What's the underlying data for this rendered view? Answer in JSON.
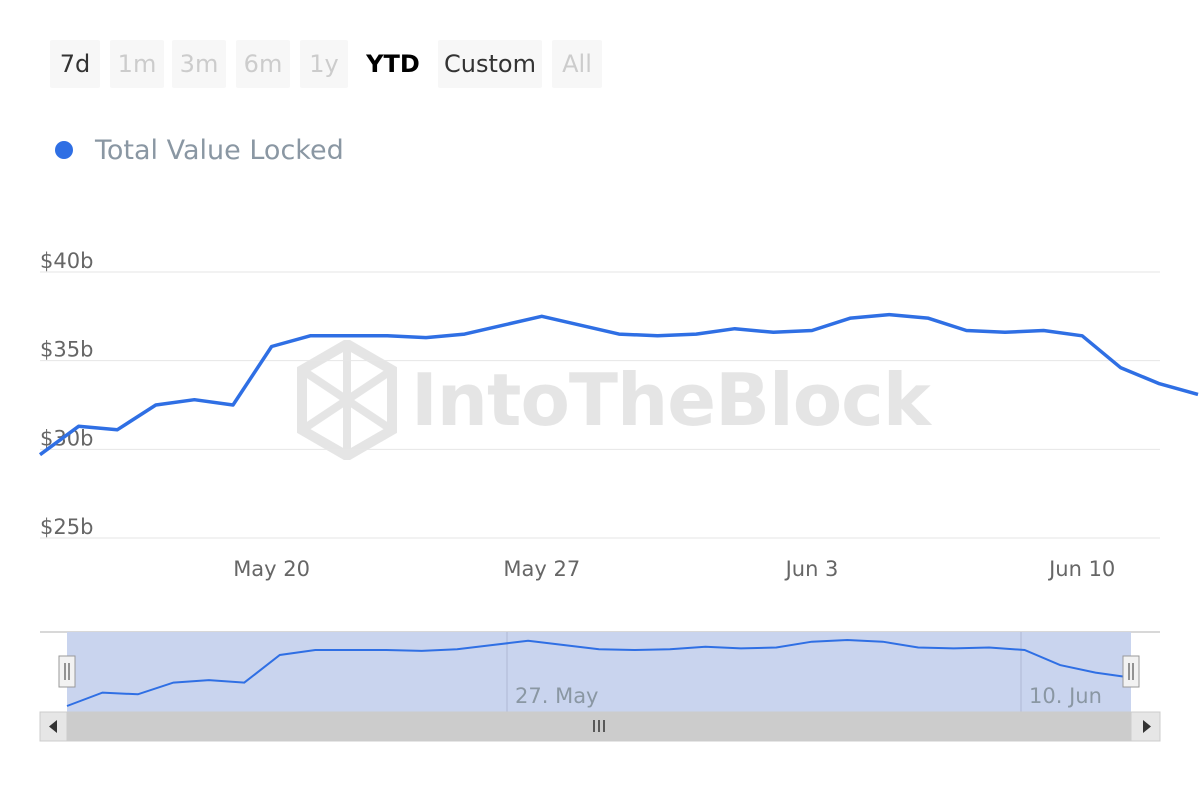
{
  "range_selector": {
    "buttons": [
      {
        "label": "7d",
        "state": "normal"
      },
      {
        "label": "1m",
        "state": "disabled"
      },
      {
        "label": "3m",
        "state": "disabled"
      },
      {
        "label": "6m",
        "state": "disabled"
      },
      {
        "label": "1y",
        "state": "disabled"
      },
      {
        "label": "YTD",
        "state": "active"
      },
      {
        "label": "Custom",
        "state": "normal"
      },
      {
        "label": "All",
        "state": "disabled"
      }
    ]
  },
  "legend": {
    "label": "Total Value Locked",
    "color": "#2f6fe4"
  },
  "watermark": {
    "text": "IntoTheBlock"
  },
  "navigator": {
    "labels": [
      "27. May",
      "10. Jun"
    ],
    "fill_color": "#c9d4ee"
  },
  "chart_data": {
    "type": "line",
    "y_ticks": [
      "$25b",
      "$30b",
      "$35b",
      "$40b"
    ],
    "x_ticks": [
      "May 20",
      "May 27",
      "Jun 3",
      "Jun 10"
    ],
    "ylim": [
      25,
      40
    ],
    "grid": true,
    "legend_position": "top-left",
    "series": [
      {
        "name": "Total Value Locked",
        "color": "#2f6fe4",
        "x": [
          "May 14",
          "May 15",
          "May 16",
          "May 17",
          "May 18",
          "May 19",
          "May 20",
          "May 21",
          "May 22",
          "May 23",
          "May 24",
          "May 25",
          "May 26",
          "May 27",
          "May 28",
          "May 29",
          "May 30",
          "May 31",
          "Jun 1",
          "Jun 2",
          "Jun 3",
          "Jun 4",
          "Jun 5",
          "Jun 6",
          "Jun 7",
          "Jun 8",
          "Jun 9",
          "Jun 10",
          "Jun 11",
          "Jun 12",
          "Jun 13"
        ],
        "values": [
          29.7,
          31.3,
          31.1,
          32.5,
          32.8,
          32.5,
          35.8,
          36.4,
          36.4,
          36.4,
          36.3,
          36.5,
          37.0,
          37.5,
          37.0,
          36.5,
          36.4,
          36.5,
          36.8,
          36.6,
          36.7,
          37.4,
          37.6,
          37.4,
          36.7,
          36.6,
          36.7,
          36.4,
          34.6,
          33.7,
          33.1
        ]
      }
    ]
  }
}
